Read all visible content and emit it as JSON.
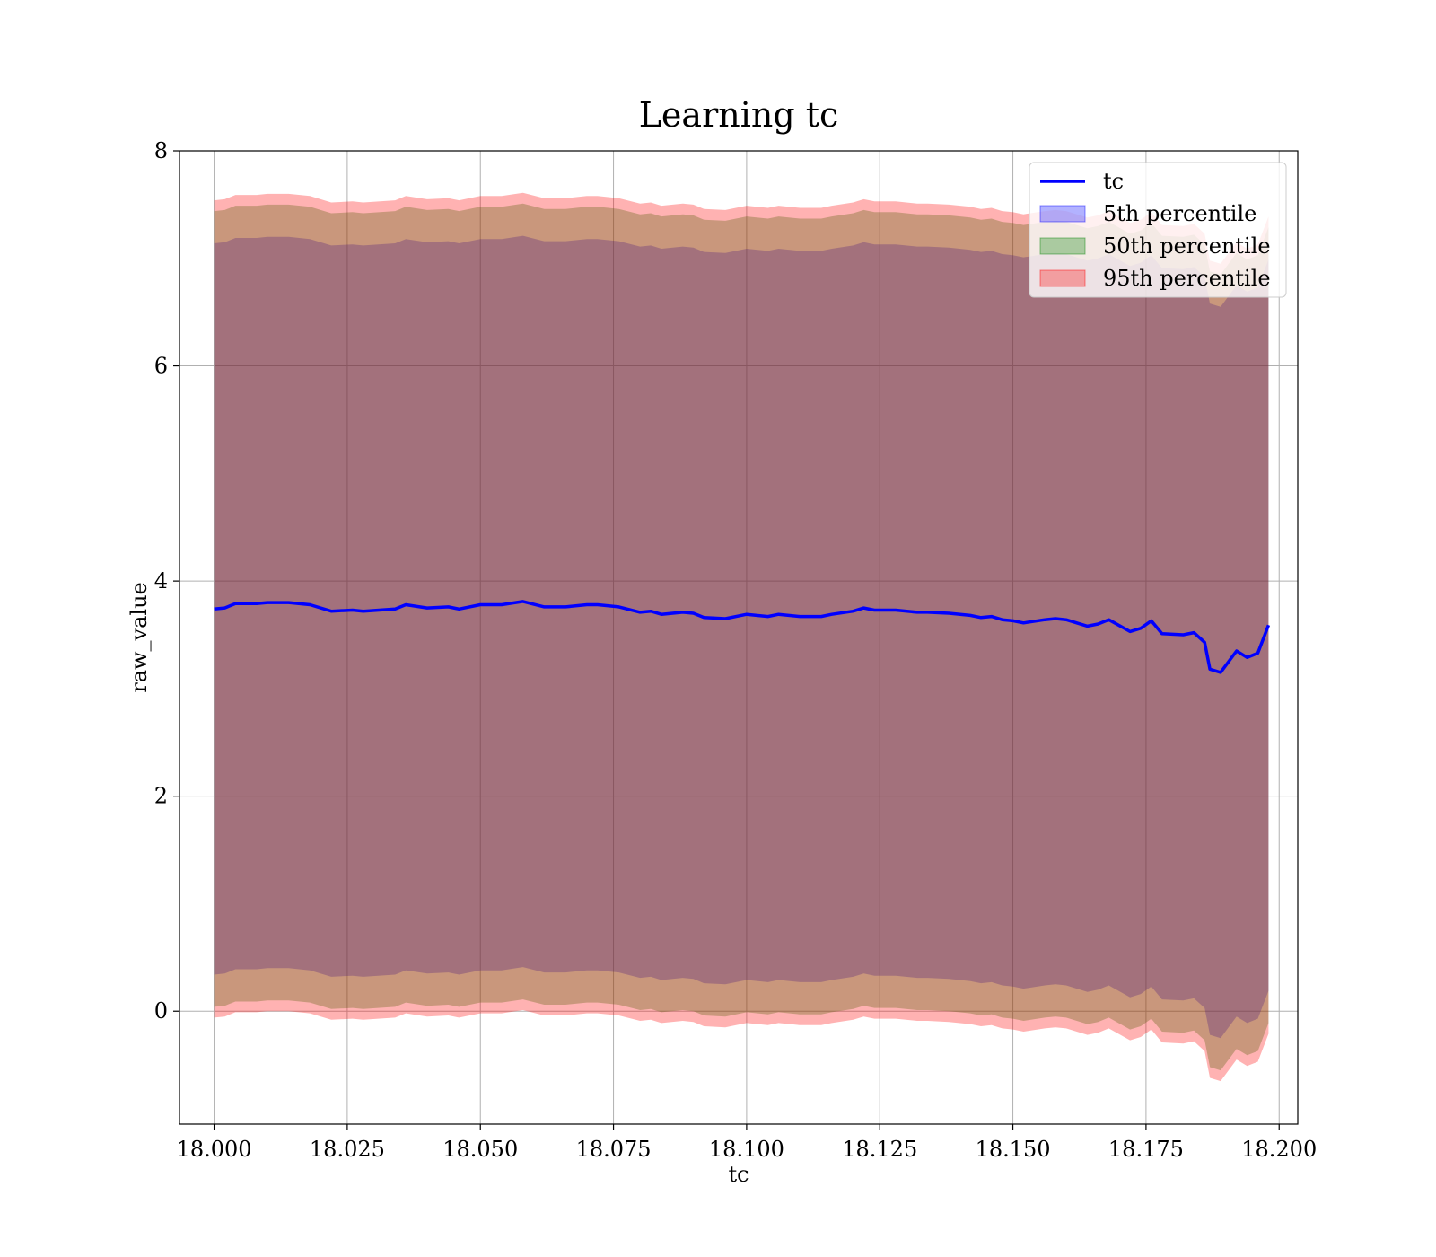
{
  "chart_data": {
    "type": "line",
    "title": "Learning tc",
    "xlabel": "tc",
    "ylabel": "raw_value",
    "xlim": [
      17.9935,
      18.2035
    ],
    "ylim": [
      -1.05,
      8.0
    ],
    "grid": true,
    "legend_position": "top-right",
    "xticks": [
      18.0,
      18.025,
      18.05,
      18.075,
      18.1,
      18.125,
      18.15,
      18.175,
      18.2
    ],
    "xtick_labels": [
      "18.000",
      "18.025",
      "18.050",
      "18.075",
      "18.100",
      "18.125",
      "18.150",
      "18.175",
      "18.200"
    ],
    "yticks": [
      0,
      2,
      4,
      6,
      8
    ],
    "ytick_labels": [
      "0",
      "2",
      "4",
      "6",
      "8"
    ],
    "x": [
      18.0,
      18.002,
      18.004,
      18.008,
      18.01,
      18.014,
      18.018,
      18.022,
      18.026,
      18.028,
      18.034,
      18.036,
      18.04,
      18.044,
      18.046,
      18.05,
      18.054,
      18.058,
      18.062,
      18.066,
      18.07,
      18.072,
      18.076,
      18.08,
      18.082,
      18.084,
      18.088,
      18.09,
      18.092,
      18.096,
      18.1,
      18.104,
      18.106,
      18.11,
      18.114,
      18.116,
      18.12,
      18.122,
      18.124,
      18.128,
      18.132,
      18.134,
      18.138,
      18.142,
      18.144,
      18.146,
      18.148,
      18.15,
      18.152,
      18.156,
      18.158,
      18.16,
      18.164,
      18.166,
      18.168,
      18.172,
      18.174,
      18.176,
      18.178,
      18.182,
      18.184,
      18.186,
      18.187,
      18.189,
      18.192,
      18.194,
      18.196,
      18.198
    ],
    "series": [
      {
        "name": "tc",
        "color": "#0000ff",
        "values": [
          3.74,
          3.75,
          3.79,
          3.79,
          3.8,
          3.8,
          3.78,
          3.72,
          3.73,
          3.72,
          3.74,
          3.78,
          3.75,
          3.76,
          3.74,
          3.78,
          3.78,
          3.81,
          3.76,
          3.76,
          3.78,
          3.78,
          3.76,
          3.71,
          3.72,
          3.69,
          3.71,
          3.7,
          3.66,
          3.65,
          3.69,
          3.67,
          3.69,
          3.67,
          3.67,
          3.69,
          3.72,
          3.75,
          3.73,
          3.73,
          3.71,
          3.71,
          3.7,
          3.68,
          3.66,
          3.67,
          3.64,
          3.63,
          3.61,
          3.64,
          3.65,
          3.64,
          3.58,
          3.6,
          3.64,
          3.53,
          3.56,
          3.63,
          3.51,
          3.5,
          3.52,
          3.43,
          3.18,
          3.15,
          3.35,
          3.29,
          3.33,
          3.59
        ]
      }
    ],
    "bands": [
      {
        "name": "5th percentile",
        "color": "#0000ff",
        "opacity": 0.3,
        "lower": [
          0.34,
          0.35,
          0.39,
          0.39,
          0.4,
          0.4,
          0.38,
          0.32,
          0.33,
          0.32,
          0.34,
          0.38,
          0.35,
          0.36,
          0.34,
          0.38,
          0.38,
          0.41,
          0.36,
          0.36,
          0.38,
          0.38,
          0.36,
          0.31,
          0.32,
          0.29,
          0.31,
          0.3,
          0.26,
          0.25,
          0.29,
          0.27,
          0.29,
          0.27,
          0.27,
          0.29,
          0.32,
          0.35,
          0.33,
          0.33,
          0.31,
          0.31,
          0.3,
          0.28,
          0.26,
          0.27,
          0.24,
          0.23,
          0.21,
          0.24,
          0.25,
          0.24,
          0.18,
          0.2,
          0.24,
          0.13,
          0.16,
          0.23,
          0.11,
          0.1,
          0.12,
          0.03,
          -0.22,
          -0.25,
          -0.05,
          -0.11,
          -0.07,
          0.19
        ],
        "upper": [
          7.14,
          7.15,
          7.19,
          7.19,
          7.2,
          7.2,
          7.18,
          7.12,
          7.13,
          7.12,
          7.14,
          7.18,
          7.15,
          7.16,
          7.14,
          7.18,
          7.18,
          7.21,
          7.16,
          7.16,
          7.18,
          7.18,
          7.16,
          7.11,
          7.12,
          7.09,
          7.11,
          7.1,
          7.06,
          7.05,
          7.09,
          7.07,
          7.09,
          7.07,
          7.07,
          7.09,
          7.12,
          7.15,
          7.13,
          7.13,
          7.11,
          7.11,
          7.1,
          7.08,
          7.06,
          7.07,
          7.04,
          7.03,
          7.01,
          7.04,
          7.05,
          7.04,
          6.98,
          7.0,
          7.04,
          6.93,
          6.96,
          7.03,
          6.91,
          6.9,
          6.92,
          6.83,
          6.58,
          6.55,
          6.75,
          6.69,
          6.73,
          6.99
        ]
      },
      {
        "name": "50th percentile",
        "color": "#008000",
        "opacity": 0.3,
        "lower": [
          0.04,
          0.05,
          0.09,
          0.09,
          0.1,
          0.1,
          0.08,
          0.02,
          0.03,
          0.02,
          0.04,
          0.08,
          0.05,
          0.06,
          0.04,
          0.08,
          0.08,
          0.11,
          0.06,
          0.06,
          0.08,
          0.08,
          0.06,
          0.01,
          0.02,
          -0.01,
          0.01,
          0.0,
          -0.04,
          -0.05,
          -0.01,
          -0.03,
          -0.01,
          -0.03,
          -0.03,
          -0.01,
          0.02,
          0.05,
          0.03,
          0.03,
          0.01,
          0.01,
          0.0,
          -0.02,
          -0.04,
          -0.03,
          -0.06,
          -0.07,
          -0.09,
          -0.06,
          -0.05,
          -0.06,
          -0.12,
          -0.1,
          -0.06,
          -0.17,
          -0.14,
          -0.07,
          -0.19,
          -0.2,
          -0.18,
          -0.27,
          -0.52,
          -0.55,
          -0.35,
          -0.41,
          -0.37,
          -0.11
        ],
        "upper": [
          7.44,
          7.45,
          7.49,
          7.49,
          7.5,
          7.5,
          7.48,
          7.42,
          7.43,
          7.42,
          7.44,
          7.48,
          7.45,
          7.46,
          7.44,
          7.48,
          7.48,
          7.51,
          7.46,
          7.46,
          7.48,
          7.48,
          7.46,
          7.41,
          7.42,
          7.39,
          7.41,
          7.4,
          7.36,
          7.35,
          7.39,
          7.37,
          7.39,
          7.37,
          7.37,
          7.39,
          7.42,
          7.45,
          7.43,
          7.43,
          7.41,
          7.41,
          7.4,
          7.38,
          7.36,
          7.37,
          7.34,
          7.33,
          7.31,
          7.34,
          7.35,
          7.34,
          7.28,
          7.3,
          7.34,
          7.23,
          7.26,
          7.33,
          7.21,
          7.2,
          7.22,
          7.13,
          6.88,
          6.85,
          7.05,
          6.99,
          7.03,
          7.29
        ]
      },
      {
        "name": "95th percentile",
        "color": "#ff0000",
        "opacity": 0.3,
        "lower": [
          -0.06,
          -0.05,
          -0.01,
          -0.01,
          0.0,
          0.0,
          -0.02,
          -0.08,
          -0.07,
          -0.08,
          -0.06,
          -0.02,
          -0.05,
          -0.04,
          -0.06,
          -0.02,
          -0.02,
          0.01,
          -0.04,
          -0.04,
          -0.02,
          -0.02,
          -0.04,
          -0.09,
          -0.08,
          -0.11,
          -0.09,
          -0.1,
          -0.14,
          -0.15,
          -0.11,
          -0.13,
          -0.11,
          -0.13,
          -0.13,
          -0.11,
          -0.08,
          -0.05,
          -0.07,
          -0.07,
          -0.09,
          -0.09,
          -0.1,
          -0.12,
          -0.14,
          -0.13,
          -0.16,
          -0.17,
          -0.19,
          -0.16,
          -0.15,
          -0.16,
          -0.22,
          -0.2,
          -0.16,
          -0.27,
          -0.24,
          -0.17,
          -0.29,
          -0.3,
          -0.28,
          -0.37,
          -0.62,
          -0.65,
          -0.45,
          -0.51,
          -0.47,
          -0.21
        ],
        "upper": [
          7.54,
          7.55,
          7.59,
          7.59,
          7.6,
          7.6,
          7.58,
          7.52,
          7.53,
          7.52,
          7.54,
          7.58,
          7.55,
          7.56,
          7.54,
          7.58,
          7.58,
          7.61,
          7.56,
          7.56,
          7.58,
          7.58,
          7.56,
          7.51,
          7.52,
          7.49,
          7.51,
          7.5,
          7.46,
          7.45,
          7.49,
          7.47,
          7.49,
          7.47,
          7.47,
          7.49,
          7.52,
          7.55,
          7.53,
          7.53,
          7.51,
          7.51,
          7.5,
          7.48,
          7.46,
          7.47,
          7.44,
          7.43,
          7.41,
          7.44,
          7.45,
          7.44,
          7.38,
          7.4,
          7.44,
          7.33,
          7.36,
          7.43,
          7.31,
          7.3,
          7.32,
          7.23,
          6.98,
          6.95,
          7.15,
          7.09,
          7.13,
          7.39
        ]
      }
    ]
  }
}
